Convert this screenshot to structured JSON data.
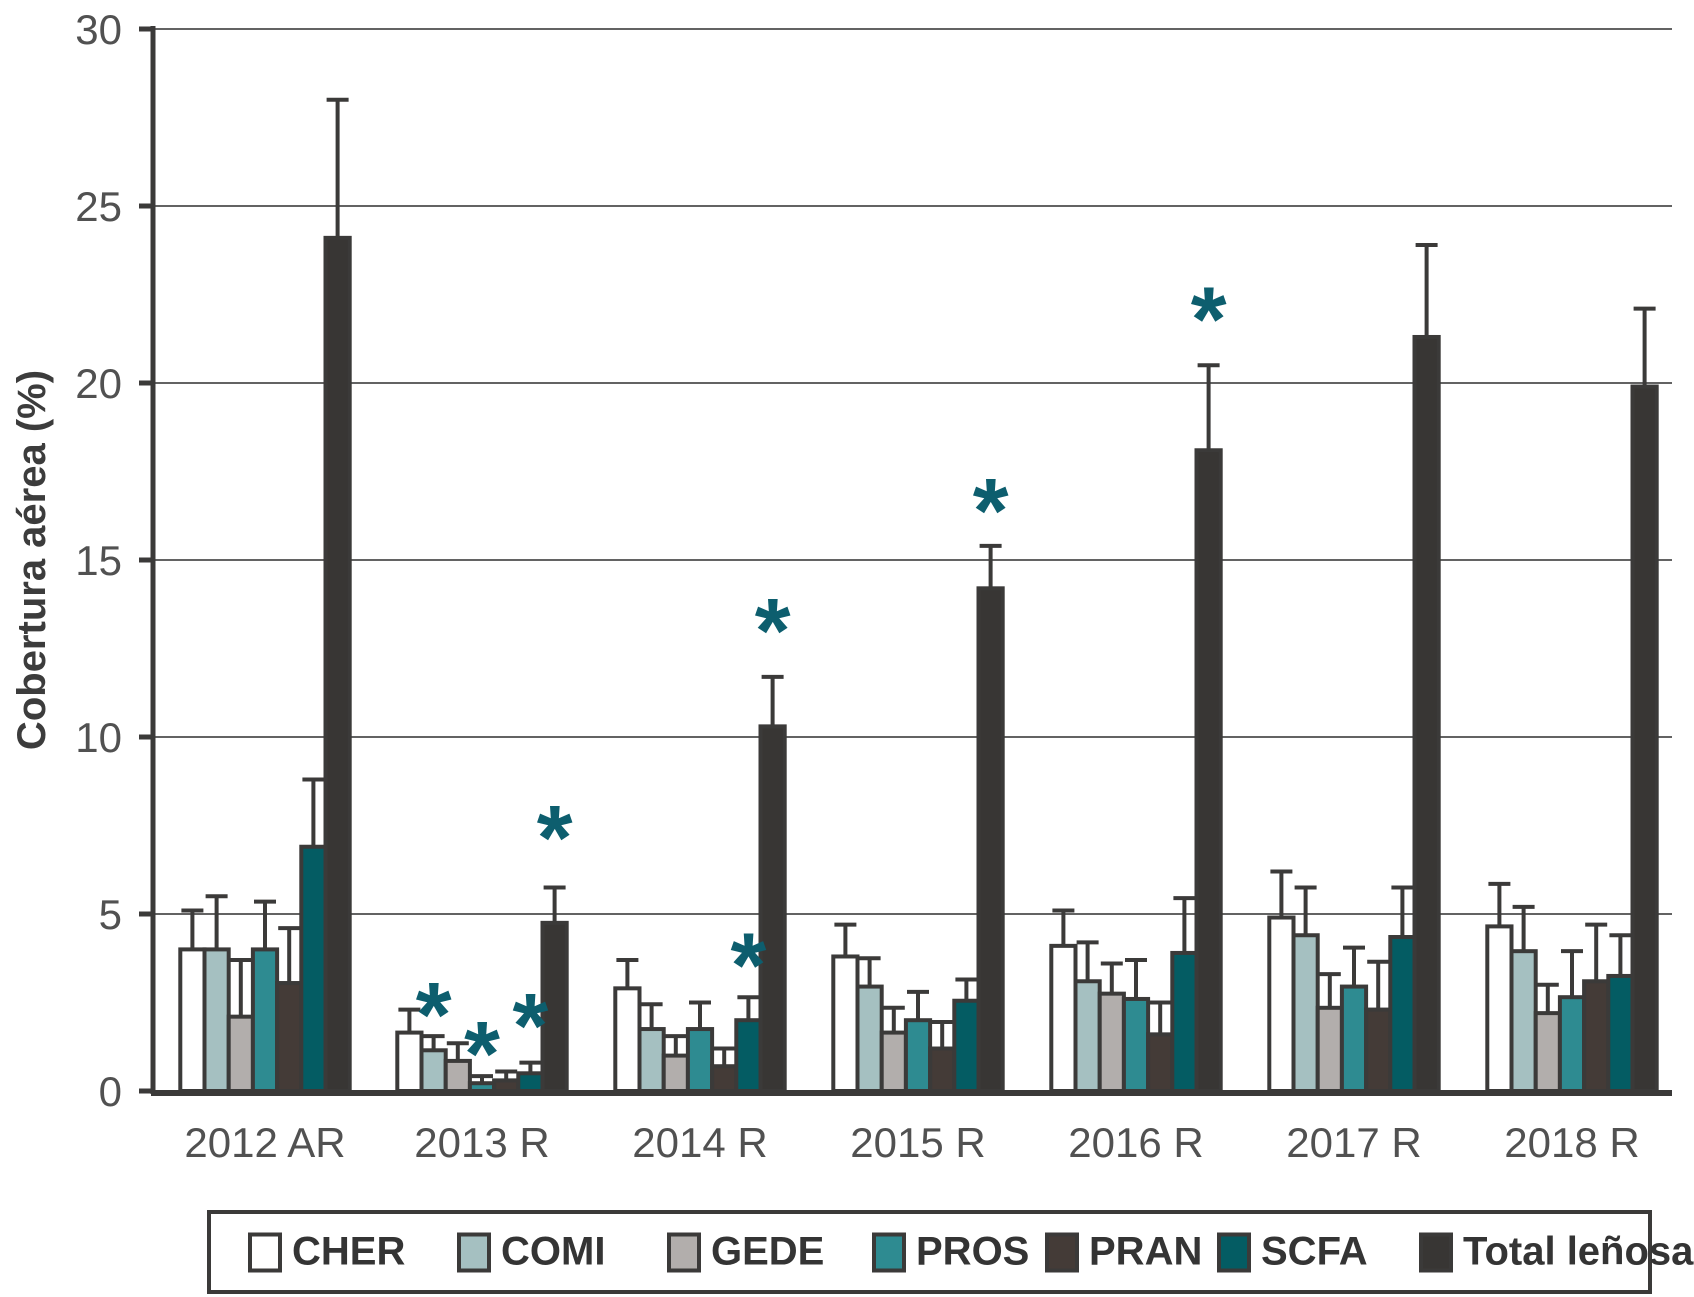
{
  "chart_data": {
    "type": "bar",
    "title": "",
    "ylabel": "Cobertura aérea (%)",
    "xlabel": "",
    "ylim": [
      0,
      30
    ],
    "yticks": [
      0,
      5,
      10,
      15,
      20,
      25,
      30
    ],
    "grid": "horizontal",
    "legend_position": "bottom-box",
    "categories": [
      "2012 AR",
      "2013 R",
      "2014 R",
      "2015 R",
      "2016 R",
      "2017 R",
      "2018 R"
    ],
    "series": [
      {
        "name": "CHER",
        "color": "#ffffff",
        "values": [
          4.0,
          1.65,
          2.9,
          3.8,
          4.1,
          4.9,
          4.65
        ],
        "err_up": [
          1.1,
          0.65,
          0.8,
          0.9,
          1.0,
          1.3,
          1.2
        ]
      },
      {
        "name": "COMI",
        "color": "#a5c0c1",
        "values": [
          4.0,
          1.15,
          1.75,
          2.95,
          3.1,
          4.4,
          3.95
        ],
        "err_up": [
          1.5,
          0.4,
          0.7,
          0.8,
          1.1,
          1.35,
          1.25
        ]
      },
      {
        "name": "GEDE",
        "color": "#b2aeac",
        "values": [
          2.1,
          0.85,
          1.0,
          1.65,
          2.75,
          2.35,
          2.2
        ],
        "err_up": [
          1.6,
          0.5,
          0.55,
          0.7,
          0.85,
          0.95,
          0.8
        ]
      },
      {
        "name": "PROS",
        "color": "#2e8b91",
        "values": [
          4.0,
          0.22,
          1.75,
          2.0,
          2.6,
          2.95,
          2.65
        ],
        "err_up": [
          1.35,
          0.2,
          0.75,
          0.8,
          1.1,
          1.1,
          1.3
        ]
      },
      {
        "name": "PRAN",
        "color": "#443b37",
        "values": [
          3.05,
          0.3,
          0.7,
          1.2,
          1.6,
          2.3,
          3.1
        ],
        "err_up": [
          1.55,
          0.25,
          0.5,
          0.75,
          0.9,
          1.35,
          1.6
        ]
      },
      {
        "name": "SCFA",
        "color": "#045c63",
        "values": [
          6.9,
          0.5,
          2.0,
          2.55,
          3.9,
          4.35,
          3.25
        ],
        "err_up": [
          1.9,
          0.3,
          0.65,
          0.6,
          1.55,
          1.4,
          1.15
        ]
      },
      {
        "name": "Total leñosas",
        "color": "#383634",
        "values": [
          24.1,
          4.75,
          10.3,
          14.2,
          18.1,
          21.3,
          19.9
        ],
        "err_up": [
          3.9,
          1.0,
          1.4,
          1.2,
          2.4,
          2.6,
          2.2
        ]
      }
    ],
    "asterisks": [
      {
        "category": "2013 R",
        "series": "COMI",
        "y": 2.55
      },
      {
        "category": "2013 R",
        "series": "PROS",
        "y": 1.45
      },
      {
        "category": "2013 R",
        "series": "SCFA",
        "y": 2.25
      },
      {
        "category": "2013 R",
        "series": "Total leñosas",
        "y": 7.55
      },
      {
        "category": "2014 R",
        "series": "SCFA",
        "y": 3.95
      },
      {
        "category": "2014 R",
        "series": "Total leñosas",
        "y": 13.4
      },
      {
        "category": "2015 R",
        "series": "Total leñosas",
        "y": 16.8
      },
      {
        "category": "2016 R",
        "series": "Total leñosas",
        "y": 22.2
      }
    ],
    "colors": {
      "axis": "#3b3a39",
      "bar_outline": "#3b3a39",
      "grid": "#636363",
      "tick_text": "#515151",
      "asterisk": "#0d5e6e"
    }
  }
}
